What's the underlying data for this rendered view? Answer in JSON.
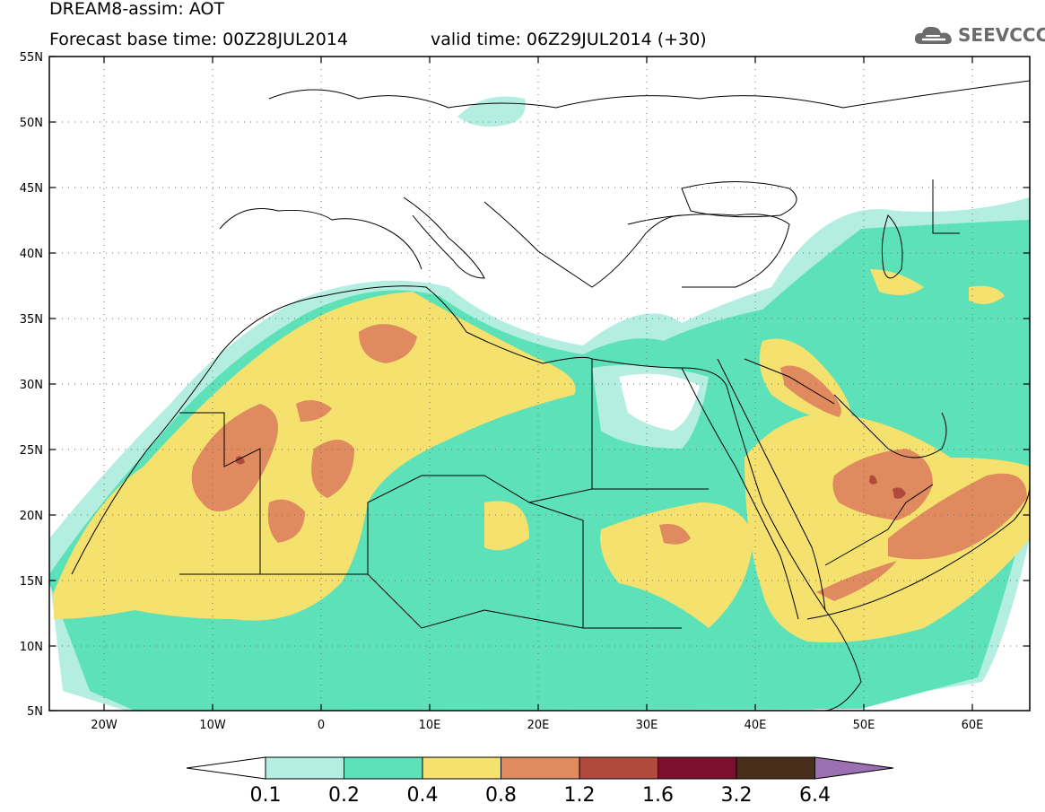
{
  "header": {
    "title": "DREAM8-assim: AOT",
    "base_time": "Forecast base time: 00Z28JUL2014",
    "valid_time": "valid time: 06Z29JUL2014 (+30)"
  },
  "logo": {
    "text": "SEEVCCC",
    "icon": "cloud-icon",
    "color": "#6b6b6b"
  },
  "map": {
    "projection": "lat-lon",
    "lon_range": [
      -25,
      65
    ],
    "lat_range": [
      5,
      55
    ],
    "lat_labels": [
      "55N",
      "50N",
      "45N",
      "40N",
      "35N",
      "30N",
      "25N",
      "20N",
      "15N",
      "10N",
      "5N"
    ],
    "lon_labels": [
      "20W",
      "10W",
      "0",
      "10E",
      "20E",
      "30E",
      "40E",
      "50E",
      "60E"
    ],
    "gridlines": "dotted"
  },
  "colorbar": {
    "levels": [
      "0.1",
      "0.2",
      "0.4",
      "0.8",
      "1.2",
      "1.6",
      "3.2",
      "6.4"
    ],
    "colors": [
      "#b4eee0",
      "#5ce1b8",
      "#f5e16e",
      "#e08a60",
      "#b04a3c",
      "#7c0f2e",
      "#4a2e1c"
    ],
    "under_color": "#ffffff",
    "over_color": "#9b6fb2"
  }
}
